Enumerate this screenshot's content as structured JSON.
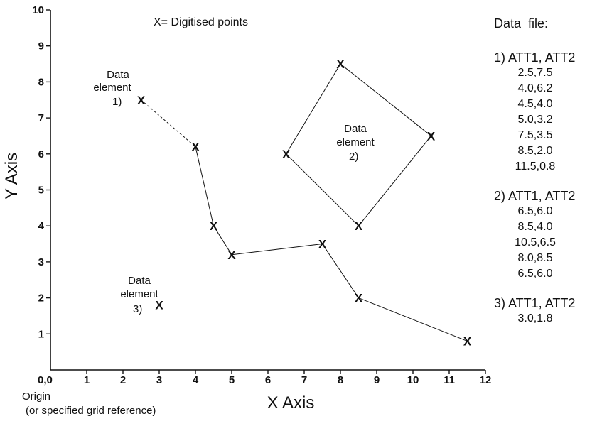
{
  "figure": {
    "note": "X= Digitised points",
    "point_glyph": "X",
    "x_axis_title": "X Axis",
    "y_axis_title": "Y Axis",
    "origin_label": "Origin",
    "origin_sublabel": "(or specified grid reference)",
    "ink_color": "#111111"
  },
  "chart_data": {
    "type": "scatter",
    "xlabel": "X Axis",
    "ylabel": "Y Axis",
    "xlim": [
      0,
      12
    ],
    "ylim": [
      0,
      10
    ],
    "x_ticks": [
      "0,0",
      "1",
      "2",
      "3",
      "4",
      "5",
      "6",
      "7",
      "8",
      "9",
      "10",
      "11",
      "12"
    ],
    "y_ticks": [
      "1",
      "2",
      "3",
      "4",
      "5",
      "6",
      "7",
      "8",
      "9",
      "10"
    ],
    "grid": false,
    "series": [
      {
        "name": "1) ATT1, ATT2",
        "kind": "polyline",
        "dashed_first_segment": true,
        "points": [
          [
            2.5,
            7.5
          ],
          [
            4.0,
            6.2
          ],
          [
            4.5,
            4.0
          ],
          [
            5.0,
            3.2
          ],
          [
            7.5,
            3.5
          ],
          [
            8.5,
            2.0
          ],
          [
            11.5,
            0.8
          ]
        ]
      },
      {
        "name": "2) ATT1, ATT2",
        "kind": "polygon",
        "points": [
          [
            6.5,
            6.0
          ],
          [
            8.5,
            4.0
          ],
          [
            10.5,
            6.5
          ],
          [
            8.0,
            8.5
          ],
          [
            6.5,
            6.0
          ]
        ]
      },
      {
        "name": "3) ATT1, ATT2",
        "kind": "point",
        "points": [
          [
            3.0,
            1.8
          ]
        ]
      }
    ]
  },
  "element_labels": [
    {
      "title_line1": "Data",
      "title_line2": "element",
      "number": "1)"
    },
    {
      "title_line1": "Data",
      "title_line2": "element",
      "number": "2)"
    },
    {
      "title_line1": "Data",
      "title_line2": "element",
      "number": "3)"
    }
  ],
  "data_file": {
    "title": "Data  file:",
    "blocks": [
      {
        "header": "1) ATT1, ATT2",
        "values": [
          "2.5,7.5",
          "4.0,6.2",
          "4.5,4.0",
          "5.0,3.2",
          "7.5,3.5",
          "8.5,2.0",
          "11.5,0.8"
        ]
      },
      {
        "header": "2) ATT1, ATT2",
        "values": [
          "6.5,6.0",
          "8.5,4.0",
          "10.5,6.5",
          "8.0,8.5",
          "6.5,6.0"
        ]
      },
      {
        "header": "3) ATT1, ATT2",
        "values": [
          "3.0,1.8"
        ]
      }
    ]
  }
}
